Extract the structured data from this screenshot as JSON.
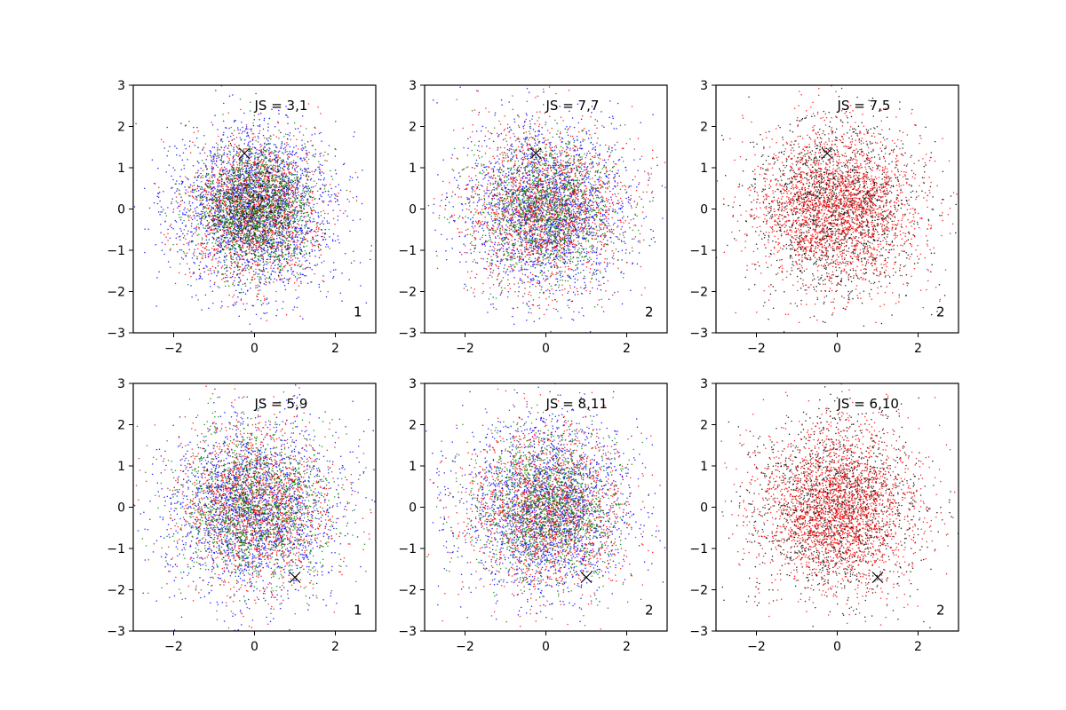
{
  "chart_data": [
    {
      "type": "scatter",
      "panel_label": "JS = 3,1",
      "panel_index": "1",
      "xlim": [
        -3,
        3
      ],
      "ylim": [
        -3,
        3
      ],
      "xticks": [
        -2,
        0,
        2
      ],
      "yticks": [
        -3,
        -2,
        -1,
        0,
        1,
        2,
        3
      ],
      "series": [
        {
          "color": "#0000ff",
          "points": 2200,
          "spread": 1.0
        },
        {
          "color": "#ff0000",
          "points": 1600,
          "spread": 0.85
        },
        {
          "color": "#008000",
          "points": 1600,
          "spread": 0.75
        },
        {
          "color": "#000000",
          "points": 400,
          "spread": 0.7
        }
      ],
      "marker": {
        "x": -0.25,
        "y": 1.35,
        "symbol": "x"
      }
    },
    {
      "type": "scatter",
      "panel_label": "JS = 7,7",
      "panel_index": "2",
      "xlim": [
        -3,
        3
      ],
      "ylim": [
        -3,
        3
      ],
      "xticks": [
        -2,
        0,
        2
      ],
      "yticks": [
        -3,
        -2,
        -1,
        0,
        1,
        2,
        3
      ],
      "series": [
        {
          "color": "#0000ff",
          "points": 2000,
          "spread": 1.0
        },
        {
          "color": "#ff0000",
          "points": 1800,
          "spread": 1.0
        },
        {
          "color": "#008000",
          "points": 1400,
          "spread": 0.9
        }
      ],
      "marker": {
        "x": -0.25,
        "y": 1.35,
        "symbol": "x"
      }
    },
    {
      "type": "scatter",
      "panel_label": "JS = 7,5",
      "panel_index": "2",
      "xlim": [
        -3,
        3
      ],
      "ylim": [
        -3,
        3
      ],
      "xticks": [
        -2,
        0,
        2
      ],
      "yticks": [
        -3,
        -2,
        -1,
        0,
        1,
        2,
        3
      ],
      "series": [
        {
          "color": "#000000",
          "points": 1600,
          "spread": 1.05
        },
        {
          "color": "#ff0000",
          "points": 2400,
          "spread": 1.0
        }
      ],
      "marker": {
        "x": -0.25,
        "y": 1.35,
        "symbol": "x"
      }
    },
    {
      "type": "scatter",
      "panel_label": "JS = 5,9",
      "panel_index": "1",
      "xlim": [
        -3,
        3
      ],
      "ylim": [
        -3,
        3
      ],
      "xticks": [
        -2,
        0,
        2
      ],
      "yticks": [
        -3,
        -2,
        -1,
        0,
        1,
        2,
        3
      ],
      "series": [
        {
          "color": "#0000ff",
          "points": 2000,
          "spread": 1.05
        },
        {
          "color": "#ff0000",
          "points": 1600,
          "spread": 1.0
        },
        {
          "color": "#008000",
          "points": 1500,
          "spread": 0.95
        }
      ],
      "marker": {
        "x": 1.0,
        "y": -1.7,
        "symbol": "x"
      }
    },
    {
      "type": "scatter",
      "panel_label": "JS = 8,11",
      "panel_index": "2",
      "xlim": [
        -3,
        3
      ],
      "ylim": [
        -3,
        3
      ],
      "xticks": [
        -2,
        0,
        2
      ],
      "yticks": [
        -3,
        -2,
        -1,
        0,
        1,
        2,
        3
      ],
      "series": [
        {
          "color": "#0000ff",
          "points": 2000,
          "spread": 1.05
        },
        {
          "color": "#ff0000",
          "points": 1700,
          "spread": 1.0
        },
        {
          "color": "#008000",
          "points": 1500,
          "spread": 0.9
        }
      ],
      "marker": {
        "x": 1.0,
        "y": -1.7,
        "symbol": "x"
      }
    },
    {
      "type": "scatter",
      "panel_label": "JS = 6,10",
      "panel_index": "2",
      "xlim": [
        -3,
        3
      ],
      "ylim": [
        -3,
        3
      ],
      "xticks": [
        -2,
        0,
        2
      ],
      "yticks": [
        -3,
        -2,
        -1,
        0,
        1,
        2,
        3
      ],
      "series": [
        {
          "color": "#000000",
          "points": 1500,
          "spread": 1.05
        },
        {
          "color": "#ff0000",
          "points": 2400,
          "spread": 1.0
        }
      ],
      "marker": {
        "x": 1.0,
        "y": -1.7,
        "symbol": "x"
      }
    }
  ]
}
